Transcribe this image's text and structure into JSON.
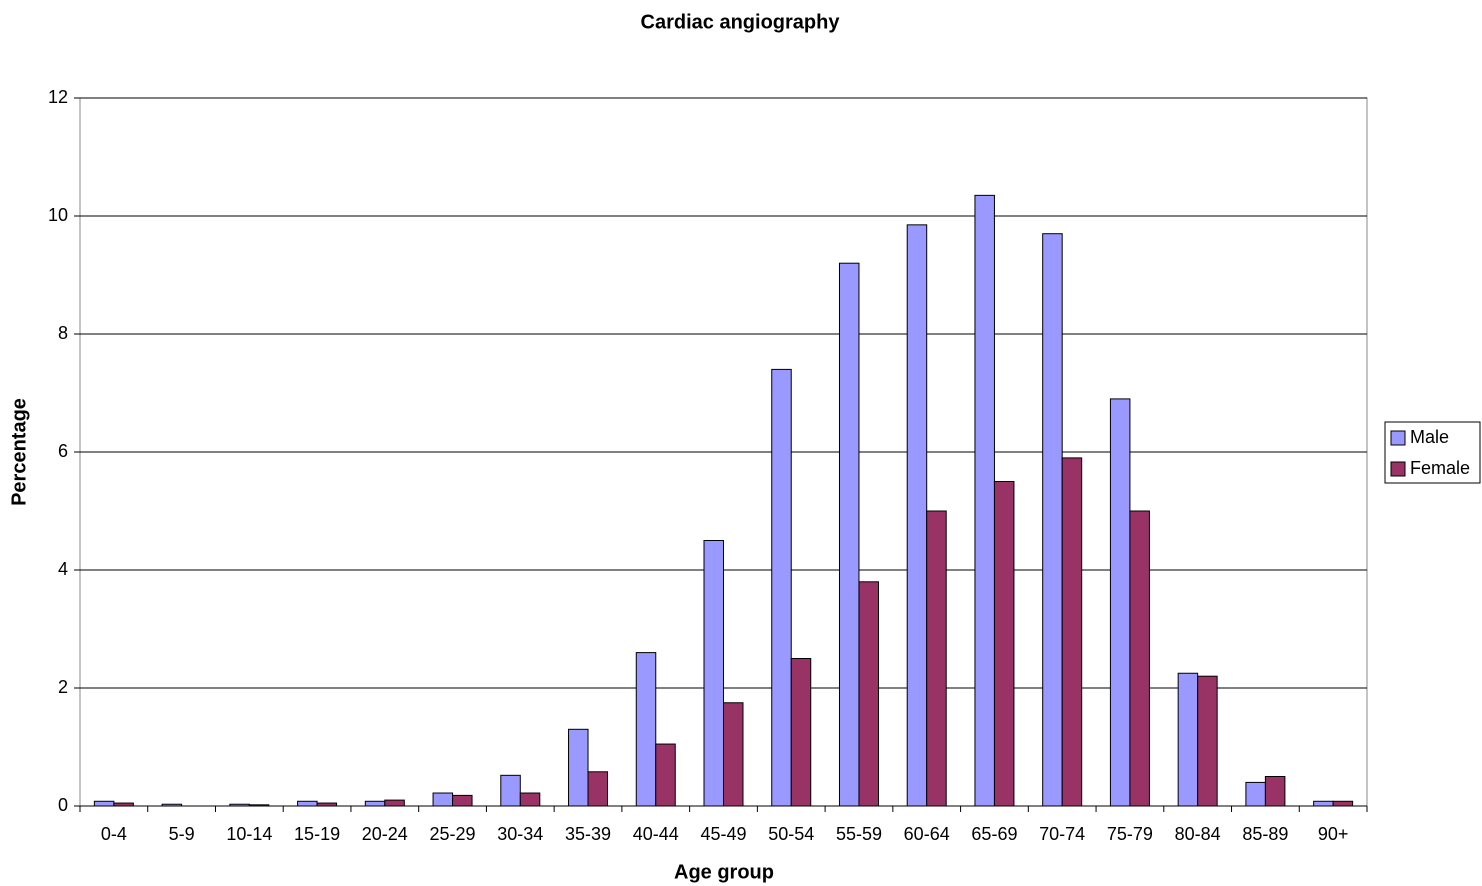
{
  "chart_data": {
    "type": "bar",
    "title": "Cardiac angiography",
    "x_label": "Age group",
    "y_label": "Percentage",
    "categories": [
      "0-4",
      "5-9",
      "10-14",
      "15-19",
      "20-24",
      "25-29",
      "30-34",
      "35-39",
      "40-44",
      "45-49",
      "50-54",
      "55-59",
      "60-64",
      "65-69",
      "70-74",
      "75-79",
      "80-84",
      "85-89",
      "90+"
    ],
    "series": [
      {
        "name": "Male",
        "color": "#9999ff",
        "values": [
          0.08,
          0.03,
          0.03,
          0.08,
          0.08,
          0.22,
          0.52,
          1.3,
          2.6,
          4.5,
          7.4,
          9.2,
          9.85,
          10.35,
          9.7,
          6.9,
          2.25,
          0.4,
          0.08
        ]
      },
      {
        "name": "Female",
        "color": "#993366",
        "values": [
          0.05,
          0.0,
          0.02,
          0.05,
          0.1,
          0.18,
          0.22,
          0.58,
          1.05,
          1.75,
          2.5,
          3.8,
          5.0,
          5.5,
          5.9,
          5.0,
          2.2,
          0.5,
          0.08
        ]
      }
    ],
    "ylim": [
      0,
      12
    ],
    "yticks": [
      0,
      2,
      4,
      6,
      8,
      10,
      12
    ],
    "grid": true,
    "legend": "right"
  }
}
